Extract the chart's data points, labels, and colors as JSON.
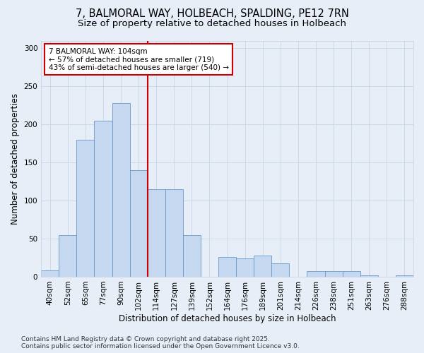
{
  "title_line1": "7, BALMORAL WAY, HOLBEACH, SPALDING, PE12 7RN",
  "title_line2": "Size of property relative to detached houses in Holbeach",
  "xlabel": "Distribution of detached houses by size in Holbeach",
  "ylabel": "Number of detached properties",
  "categories": [
    "40sqm",
    "52sqm",
    "65sqm",
    "77sqm",
    "90sqm",
    "102sqm",
    "114sqm",
    "127sqm",
    "139sqm",
    "152sqm",
    "164sqm",
    "176sqm",
    "189sqm",
    "201sqm",
    "214sqm",
    "226sqm",
    "238sqm",
    "251sqm",
    "263sqm",
    "276sqm",
    "288sqm"
  ],
  "values": [
    8,
    55,
    180,
    205,
    228,
    140,
    115,
    115,
    55,
    0,
    26,
    24,
    28,
    18,
    0,
    7,
    7,
    7,
    2,
    0,
    2
  ],
  "bar_color": "#c5d8f0",
  "bar_edge_color": "#6699cc",
  "vline_x_index": 5,
  "vline_color": "#cc0000",
  "annotation_text": "7 BALMORAL WAY: 104sqm\n← 57% of detached houses are smaller (719)\n43% of semi-detached houses are larger (540) →",
  "annotation_box_facecolor": "#ffffff",
  "annotation_box_edgecolor": "#cc0000",
  "ylim": [
    0,
    310
  ],
  "yticks": [
    0,
    50,
    100,
    150,
    200,
    250,
    300
  ],
  "background_color": "#e8eef8",
  "plot_bg_color": "#e8eef8",
  "footer_line1": "Contains HM Land Registry data © Crown copyright and database right 2025.",
  "footer_line2": "Contains public sector information licensed under the Open Government Licence v3.0.",
  "title_fontsize": 10.5,
  "subtitle_fontsize": 9.5,
  "axis_label_fontsize": 8.5,
  "tick_fontsize": 7.5,
  "annotation_fontsize": 7.5,
  "footer_fontsize": 6.5
}
